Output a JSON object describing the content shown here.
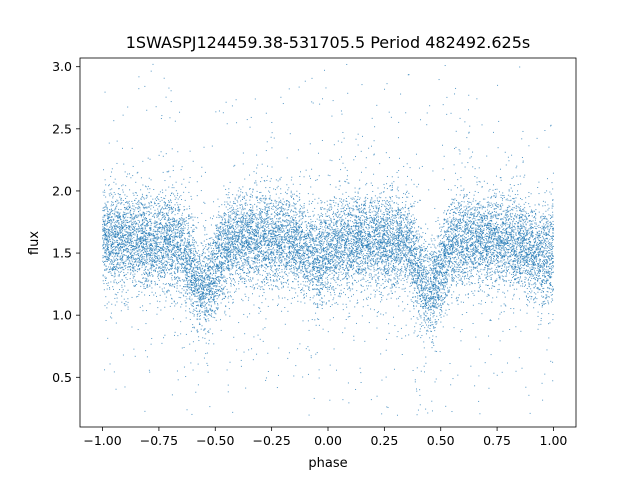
{
  "chart_data": {
    "type": "scatter",
    "title": "1SWASPJ124459.38-531705.5 Period 482492.625s",
    "xlabel": "phase",
    "ylabel": "flux",
    "xlim": [
      -1.1,
      1.1
    ],
    "ylim": [
      0.1,
      3.07
    ],
    "x_ticks": [
      -1.0,
      -0.75,
      -0.5,
      -0.25,
      0.0,
      0.25,
      0.5,
      0.75,
      1.0
    ],
    "x_tick_labels": [
      "−1.00",
      "−0.75",
      "−0.50",
      "−0.25",
      "0.00",
      "0.25",
      "0.50",
      "0.75",
      "1.00"
    ],
    "y_ticks": [
      0.5,
      1.0,
      1.5,
      2.0,
      2.5,
      3.0
    ],
    "y_tick_labels": [
      "0.5",
      "1.0",
      "1.5",
      "2.0",
      "2.5",
      "3.0"
    ],
    "grid": false,
    "marker_color": "#1f77b4",
    "x_range_data": [
      -1.0,
      1.0
    ],
    "baseline_flux": 1.6,
    "typical_spread": 0.25,
    "dips": [
      {
        "phase": -0.55,
        "min_flux": 1.2,
        "width": 0.05
      },
      {
        "phase": 0.45,
        "min_flux": 1.2,
        "width": 0.05
      }
    ],
    "secondary_dips": [
      {
        "phase": -0.05,
        "min_flux": 1.45,
        "width": 0.05
      },
      {
        "phase": 0.95,
        "min_flux": 1.45,
        "width": 0.05
      }
    ],
    "n_points": 16000
  }
}
